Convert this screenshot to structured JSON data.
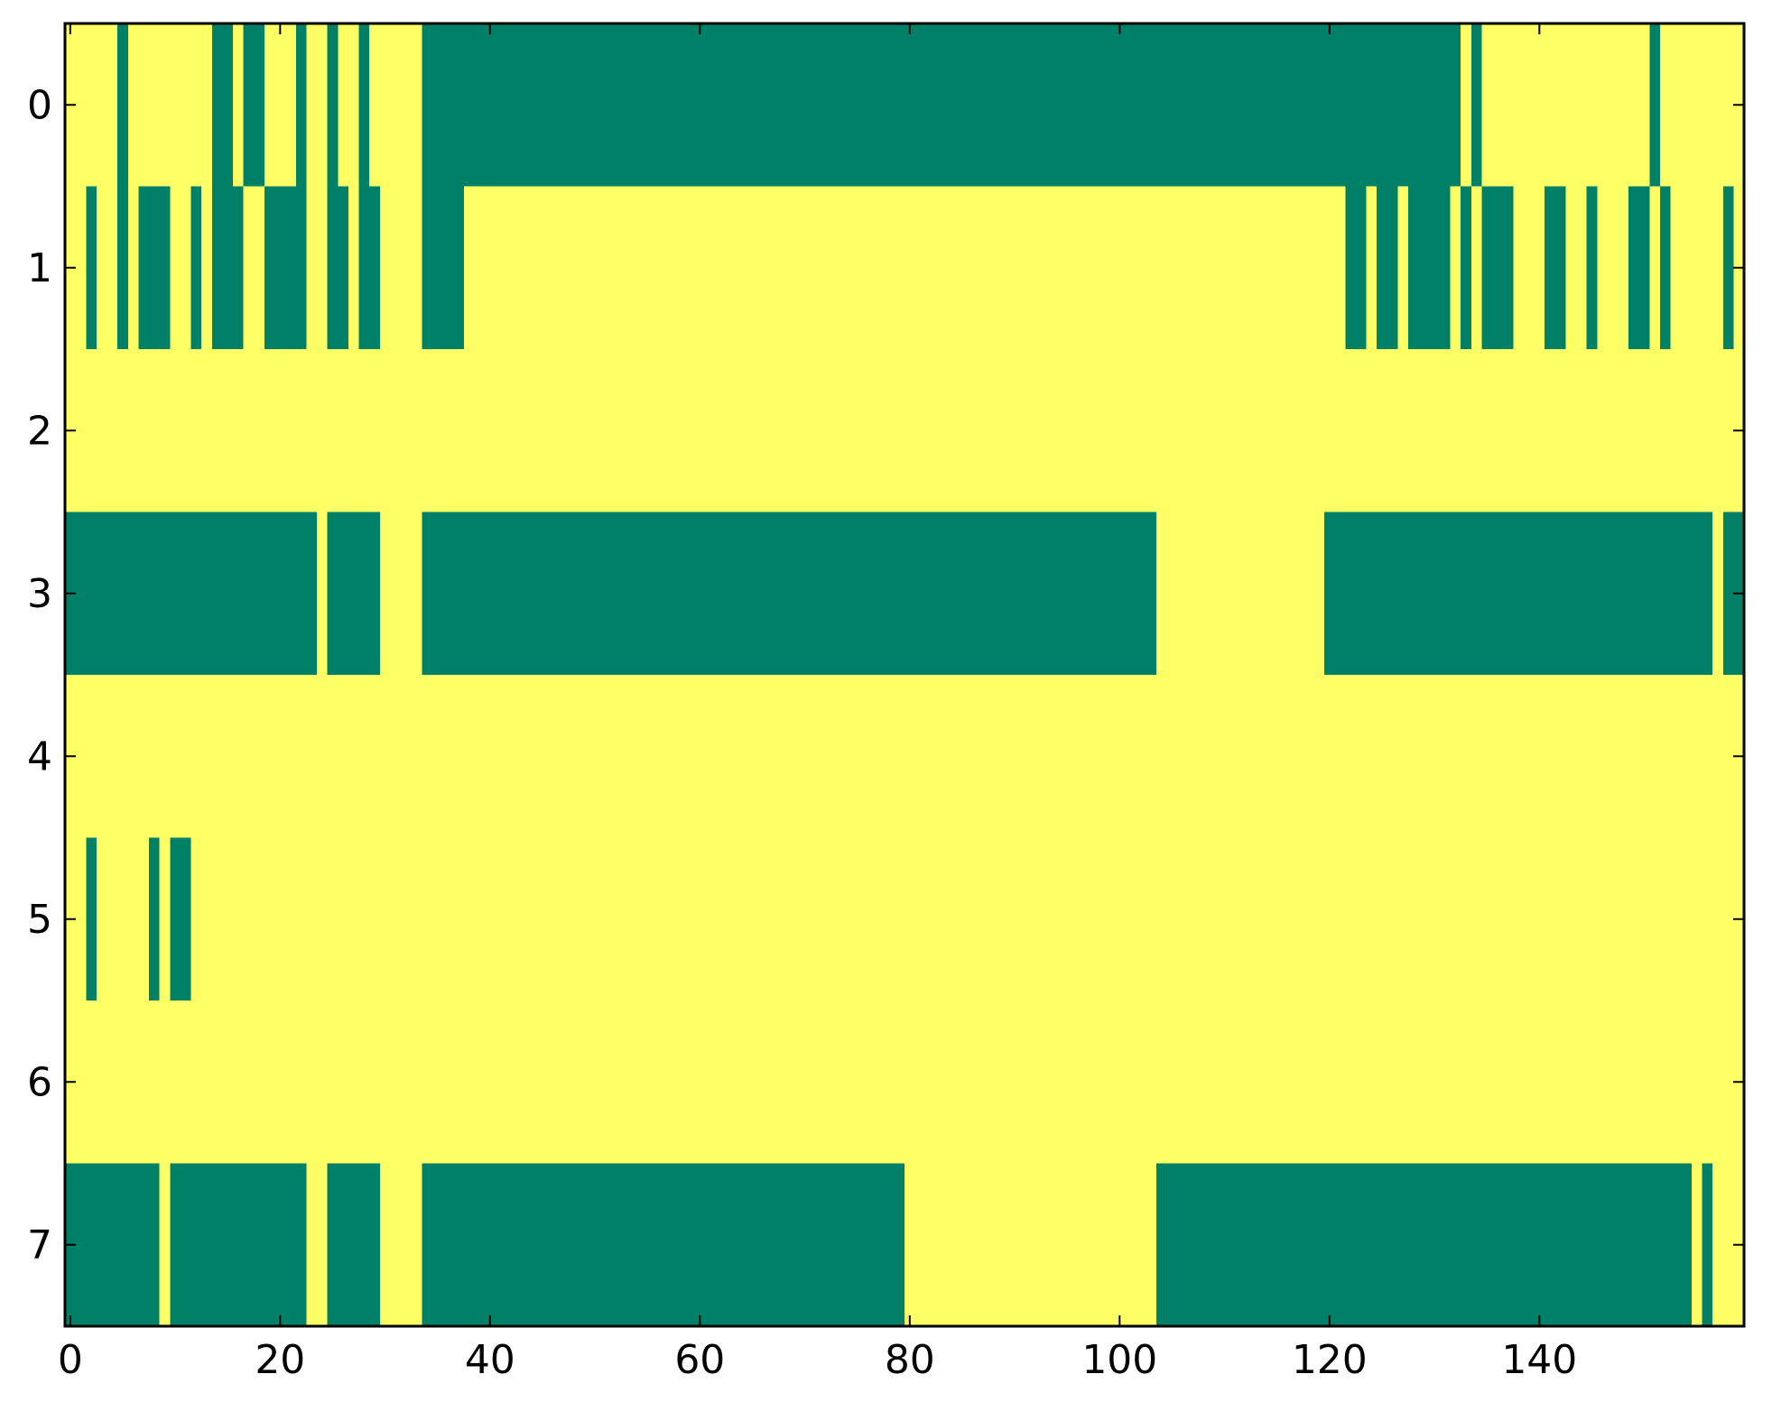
{
  "chart_data": {
    "type": "heatmap",
    "title": "",
    "xlabel": "",
    "ylabel": "",
    "n_cols": 160,
    "n_rows": 8,
    "xlim": [
      -0.5,
      159.5
    ],
    "ylim": [
      7.5,
      -0.5
    ],
    "x_ticks": [
      0,
      20,
      40,
      60,
      80,
      100,
      120,
      140
    ],
    "x_tick_labels": [
      "0",
      "20",
      "40",
      "60",
      "80",
      "100",
      "120",
      "140"
    ],
    "y_ticks": [
      0,
      1,
      2,
      3,
      4,
      5,
      6,
      7
    ],
    "y_tick_labels": [
      "0",
      "1",
      "2",
      "3",
      "4",
      "5",
      "6",
      "7"
    ],
    "colors": {
      "high": "#ffff66",
      "low": "#008066"
    },
    "value_encoding": "Each row lists [start_col, end_col] runs (inclusive) drawn in the low (green) color; all other cells are the high (yellow) color.",
    "rows": [
      {
        "row": 0,
        "green_runs": [
          [
            5,
            5
          ],
          [
            14,
            15
          ],
          [
            17,
            18
          ],
          [
            22,
            22
          ],
          [
            25,
            25
          ],
          [
            28,
            28
          ],
          [
            34,
            132
          ],
          [
            134,
            134
          ],
          [
            151,
            151
          ]
        ]
      },
      {
        "row": 1,
        "green_runs": [
          [
            2,
            2
          ],
          [
            5,
            5
          ],
          [
            7,
            9
          ],
          [
            12,
            12
          ],
          [
            14,
            16
          ],
          [
            19,
            22
          ],
          [
            25,
            26
          ],
          [
            28,
            29
          ],
          [
            34,
            37
          ],
          [
            122,
            123
          ],
          [
            125,
            126
          ],
          [
            128,
            131
          ],
          [
            133,
            133
          ],
          [
            135,
            137
          ],
          [
            141,
            142
          ],
          [
            145,
            145
          ],
          [
            149,
            150
          ],
          [
            152,
            152
          ],
          [
            158,
            158
          ]
        ]
      },
      {
        "row": 2,
        "green_runs": []
      },
      {
        "row": 3,
        "green_runs": [
          [
            0,
            23
          ],
          [
            25,
            29
          ],
          [
            34,
            103
          ],
          [
            120,
            156
          ],
          [
            158,
            159
          ]
        ]
      },
      {
        "row": 4,
        "green_runs": []
      },
      {
        "row": 5,
        "green_runs": [
          [
            2,
            2
          ],
          [
            8,
            8
          ],
          [
            10,
            11
          ]
        ]
      },
      {
        "row": 6,
        "green_runs": []
      },
      {
        "row": 7,
        "green_runs": [
          [
            0,
            8
          ],
          [
            10,
            22
          ],
          [
            25,
            29
          ],
          [
            34,
            79
          ],
          [
            104,
            154
          ],
          [
            156,
            156
          ]
        ]
      }
    ]
  }
}
